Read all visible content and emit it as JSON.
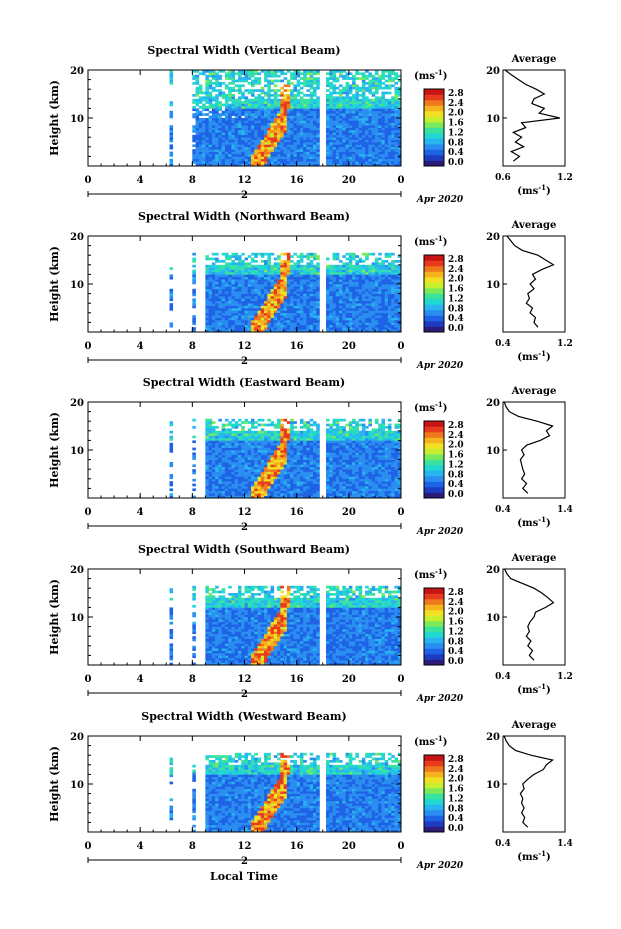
{
  "figure": {
    "bottom_xlabel": "Local Time",
    "date_label": "Apr 2020",
    "day_marker": "2",
    "ylabel": "Height (km)",
    "colorbar_unit": "(ms",
    "colorbar_exp": "-1",
    "average_title": "Average",
    "average_unit": "(ms",
    "average_exp": "-1",
    "average_unit_close": ")"
  },
  "colorbar": {
    "ticks": [
      "0.0",
      "0.4",
      "0.8",
      "1.2",
      "1.6",
      "2.0",
      "2.4",
      "2.8"
    ],
    "colors": [
      "#2b1b7a",
      "#1d3cc0",
      "#1e63e6",
      "#2a8df0",
      "#28b4f0",
      "#22d6d2",
      "#3ae2a0",
      "#7aea5a",
      "#c8ee30",
      "#f2e024",
      "#f5b41e",
      "#f0781c",
      "#e83a1c",
      "#c81414"
    ]
  },
  "chart_data": [
    {
      "type": "heatmap",
      "title": "Spectral Width (Vertical Beam)",
      "xlabel": "Local Time",
      "ylabel": "Height (km)",
      "xlim": [
        0,
        24
      ],
      "ylim": [
        0,
        20
      ],
      "xticks": [
        "0",
        "4",
        "8",
        "12",
        "16",
        "20",
        "0"
      ],
      "yticks": [
        "20",
        "10"
      ],
      "colorbar": {
        "unit": "ms^-1",
        "range": [
          0.0,
          2.8
        ]
      },
      "average": {
        "title": "Average",
        "xlabel": "(ms^-1)",
        "xlim": [
          0.6,
          1.2
        ],
        "xticks": [
          "0.6",
          "1.2"
        ],
        "yticks": [
          "20",
          "10"
        ],
        "profile": [
          [
            0.7,
            1
          ],
          [
            0.76,
            2
          ],
          [
            0.68,
            3
          ],
          [
            0.8,
            4
          ],
          [
            0.72,
            5
          ],
          [
            0.78,
            6
          ],
          [
            0.7,
            7
          ],
          [
            0.82,
            8
          ],
          [
            0.78,
            9
          ],
          [
            1.15,
            10
          ],
          [
            0.95,
            11
          ],
          [
            1.0,
            12
          ],
          [
            0.88,
            13
          ],
          [
            0.9,
            14
          ],
          [
            1.0,
            15
          ],
          [
            0.92,
            16
          ],
          [
            0.82,
            17
          ],
          [
            0.75,
            18
          ],
          [
            0.68,
            19
          ],
          [
            0.62,
            20
          ]
        ]
      }
    },
    {
      "type": "heatmap",
      "title": "Spectral Width (Northward Beam)",
      "xlabel": "Local Time",
      "ylabel": "Height (km)",
      "xlim": [
        0,
        24
      ],
      "ylim": [
        0,
        20
      ],
      "xticks": [
        "0",
        "4",
        "8",
        "12",
        "16",
        "20",
        "0"
      ],
      "yticks": [
        "20",
        "10"
      ],
      "colorbar": {
        "unit": "ms^-1",
        "range": [
          0.0,
          2.8
        ]
      },
      "average": {
        "title": "Average",
        "xlabel": "(ms^-1)",
        "xlim": [
          0.4,
          1.2
        ],
        "xticks": [
          "0.4",
          "1.2"
        ],
        "yticks": [
          "20",
          "10"
        ],
        "profile": [
          [
            0.85,
            1
          ],
          [
            0.8,
            2
          ],
          [
            0.82,
            3
          ],
          [
            0.75,
            4
          ],
          [
            0.78,
            5
          ],
          [
            0.7,
            6
          ],
          [
            0.74,
            7
          ],
          [
            0.72,
            8
          ],
          [
            0.8,
            9
          ],
          [
            0.75,
            10
          ],
          [
            0.82,
            11
          ],
          [
            0.78,
            12
          ],
          [
            0.9,
            13
          ],
          [
            1.05,
            14
          ],
          [
            0.95,
            15
          ],
          [
            0.85,
            16
          ],
          [
            0.65,
            17
          ],
          [
            0.55,
            18
          ],
          [
            0.5,
            19
          ],
          [
            0.45,
            20
          ]
        ]
      }
    },
    {
      "type": "heatmap",
      "title": "Spectral Width (Eastward Beam)",
      "xlabel": "Local Time",
      "ylabel": "Height (km)",
      "xlim": [
        0,
        24
      ],
      "ylim": [
        0,
        20
      ],
      "xticks": [
        "0",
        "4",
        "8",
        "12",
        "16",
        "20",
        "0"
      ],
      "yticks": [
        "20",
        "10"
      ],
      "colorbar": {
        "unit": "ms^-1",
        "range": [
          0.0,
          2.8
        ]
      },
      "average": {
        "title": "Average",
        "xlabel": "(ms^-1)",
        "xlim": [
          0.4,
          1.4
        ],
        "xticks": [
          "0.4",
          "1.4"
        ],
        "yticks": [
          "20",
          "10"
        ],
        "profile": [
          [
            0.8,
            1
          ],
          [
            0.72,
            2
          ],
          [
            0.78,
            3
          ],
          [
            0.7,
            4
          ],
          [
            0.75,
            5
          ],
          [
            0.72,
            6
          ],
          [
            0.7,
            7
          ],
          [
            0.68,
            8
          ],
          [
            0.74,
            9
          ],
          [
            0.7,
            10
          ],
          [
            0.78,
            11
          ],
          [
            1.0,
            12
          ],
          [
            1.15,
            13
          ],
          [
            1.1,
            14
          ],
          [
            1.2,
            15
          ],
          [
            0.95,
            16
          ],
          [
            0.65,
            17
          ],
          [
            0.5,
            18
          ],
          [
            0.45,
            19
          ],
          [
            0.42,
            20
          ]
        ]
      }
    },
    {
      "type": "heatmap",
      "title": "Spectral Width (Southward Beam)",
      "xlabel": "Local Time",
      "ylabel": "Height (km)",
      "xlim": [
        0,
        24
      ],
      "ylim": [
        0,
        20
      ],
      "xticks": [
        "0",
        "4",
        "8",
        "12",
        "16",
        "20",
        "0"
      ],
      "yticks": [
        "20",
        "10"
      ],
      "colorbar": {
        "unit": "ms^-1",
        "range": [
          0.0,
          2.8
        ]
      },
      "average": {
        "title": "Average",
        "xlabel": "(ms^-1)",
        "xlim": [
          0.4,
          1.2
        ],
        "xticks": [
          "0.4",
          "1.2"
        ],
        "yticks": [
          "20",
          "10"
        ],
        "profile": [
          [
            0.8,
            1
          ],
          [
            0.74,
            2
          ],
          [
            0.78,
            3
          ],
          [
            0.72,
            4
          ],
          [
            0.76,
            5
          ],
          [
            0.7,
            6
          ],
          [
            0.74,
            7
          ],
          [
            0.72,
            8
          ],
          [
            0.75,
            9
          ],
          [
            0.8,
            10
          ],
          [
            0.82,
            11
          ],
          [
            0.95,
            12
          ],
          [
            1.05,
            13
          ],
          [
            0.98,
            14
          ],
          [
            0.9,
            15
          ],
          [
            0.8,
            16
          ],
          [
            0.65,
            17
          ],
          [
            0.5,
            18
          ],
          [
            0.45,
            19
          ],
          [
            0.42,
            20
          ]
        ]
      }
    },
    {
      "type": "heatmap",
      "title": "Spectral Width (Westward Beam)",
      "xlabel": "Local Time",
      "ylabel": "Height (km)",
      "xlim": [
        0,
        24
      ],
      "ylim": [
        0,
        20
      ],
      "xticks": [
        "0",
        "4",
        "8",
        "12",
        "16",
        "20",
        "0"
      ],
      "yticks": [
        "20",
        "10"
      ],
      "colorbar": {
        "unit": "ms^-1",
        "range": [
          0.0,
          2.8
        ]
      },
      "average": {
        "title": "Average",
        "xlabel": "(ms^-1)",
        "xlim": [
          0.4,
          1.4
        ],
        "xticks": [
          "0.4",
          "1.4"
        ],
        "yticks": [
          "20",
          "10"
        ],
        "profile": [
          [
            0.8,
            1
          ],
          [
            0.72,
            2
          ],
          [
            0.75,
            3
          ],
          [
            0.7,
            4
          ],
          [
            0.74,
            5
          ],
          [
            0.7,
            6
          ],
          [
            0.72,
            7
          ],
          [
            0.68,
            8
          ],
          [
            0.74,
            9
          ],
          [
            0.72,
            10
          ],
          [
            0.8,
            11
          ],
          [
            0.9,
            12
          ],
          [
            1.05,
            13
          ],
          [
            1.1,
            14
          ],
          [
            1.2,
            15
          ],
          [
            0.85,
            16
          ],
          [
            0.6,
            17
          ],
          [
            0.5,
            18
          ],
          [
            0.45,
            19
          ],
          [
            0.42,
            20
          ]
        ]
      }
    }
  ]
}
